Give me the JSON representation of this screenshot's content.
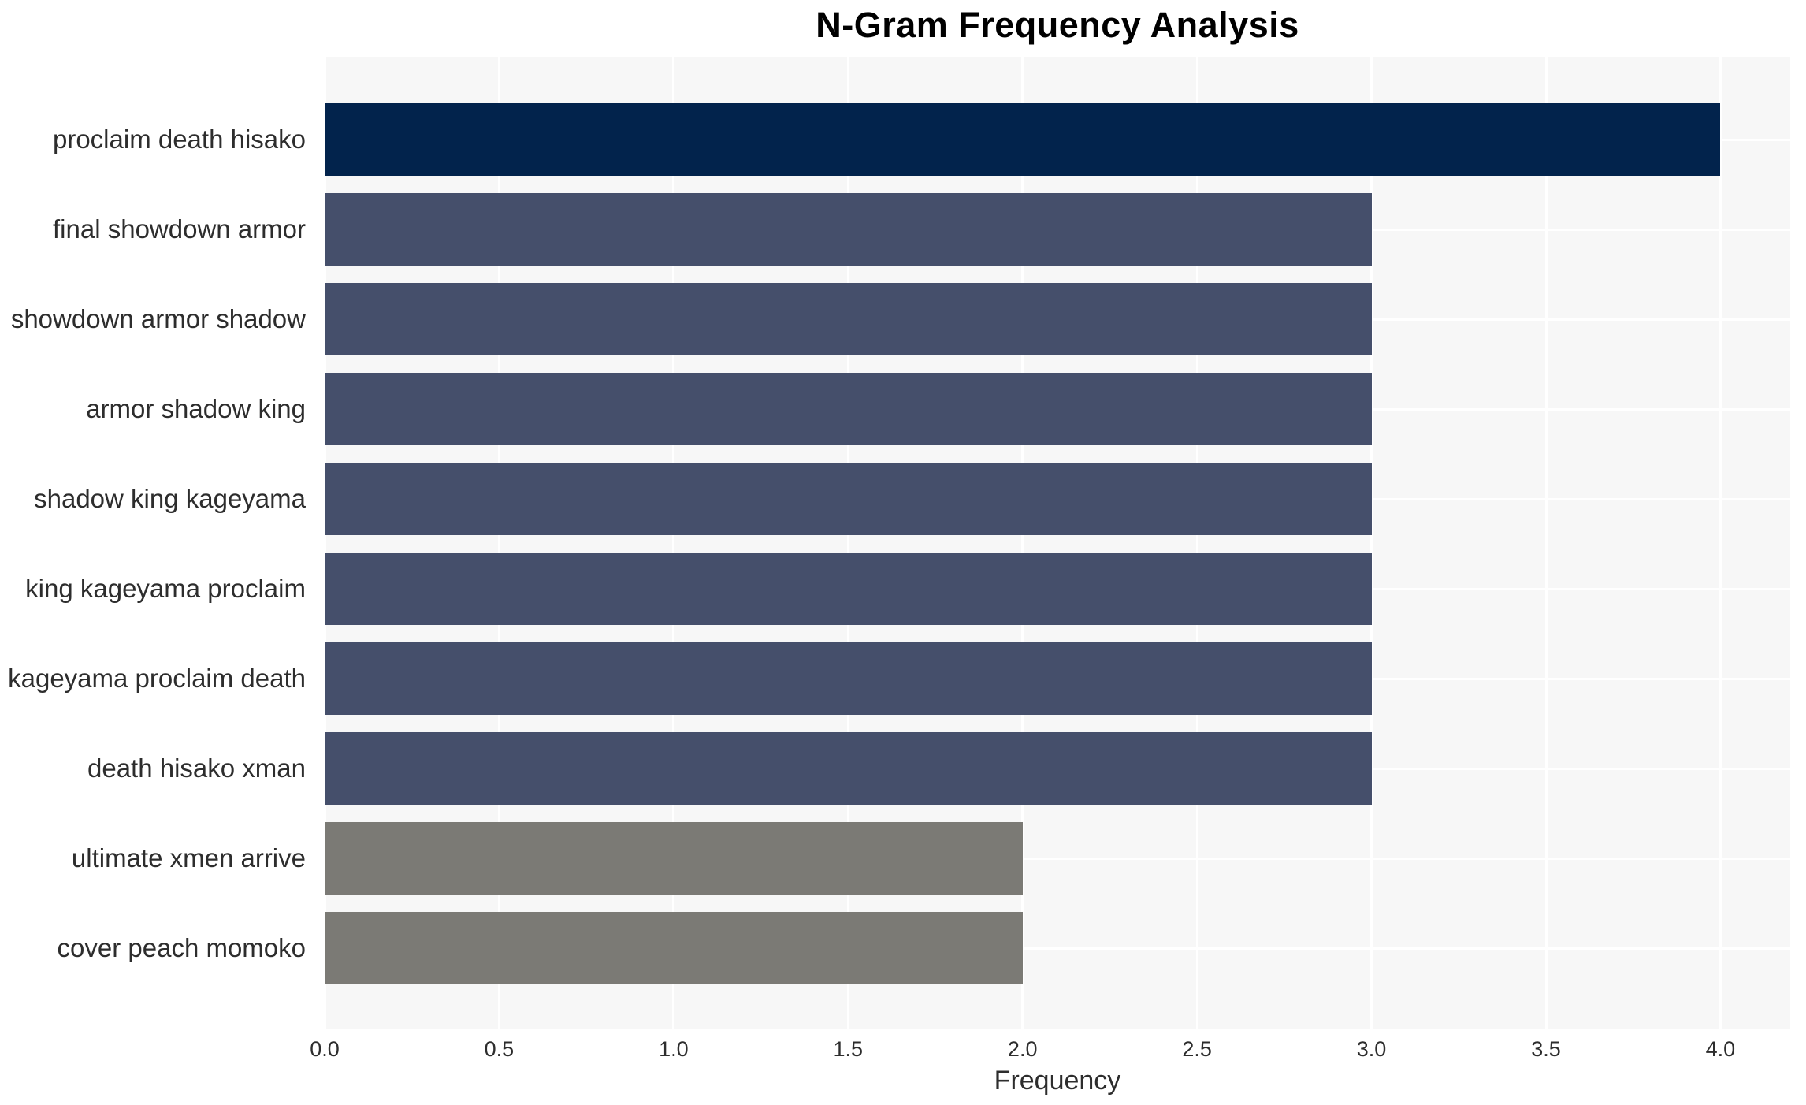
{
  "chart_data": {
    "type": "bar",
    "orientation": "horizontal",
    "title": "N-Gram Frequency Analysis",
    "xlabel": "Frequency",
    "ylabel": "",
    "categories": [
      "proclaim death hisako",
      "final showdown armor",
      "showdown armor shadow",
      "armor shadow king",
      "shadow king kageyama",
      "king kageyama proclaim",
      "kageyama proclaim death",
      "death hisako xman",
      "ultimate xmen arrive",
      "cover peach momoko"
    ],
    "values": [
      4,
      3,
      3,
      3,
      3,
      3,
      3,
      3,
      2,
      2
    ],
    "bar_colors": [
      "#02234c",
      "#454f6b",
      "#454f6b",
      "#454f6b",
      "#454f6b",
      "#454f6b",
      "#454f6b",
      "#454f6b",
      "#7b7a75",
      "#7b7a75"
    ],
    "xlim": [
      0,
      4.2
    ],
    "xticks": [
      0,
      0.5,
      1,
      1.5,
      2,
      2.5,
      3,
      3.5,
      4
    ],
    "xtick_labels": [
      "0.0",
      "0.5",
      "1.0",
      "1.5",
      "2.0",
      "2.5",
      "3.0",
      "3.5",
      "4.0"
    ],
    "grid": true,
    "legend": false,
    "plot_bg_color": "#f7f7f7",
    "grid_color": "#ffffff",
    "text_color": "#2d2d2d"
  }
}
